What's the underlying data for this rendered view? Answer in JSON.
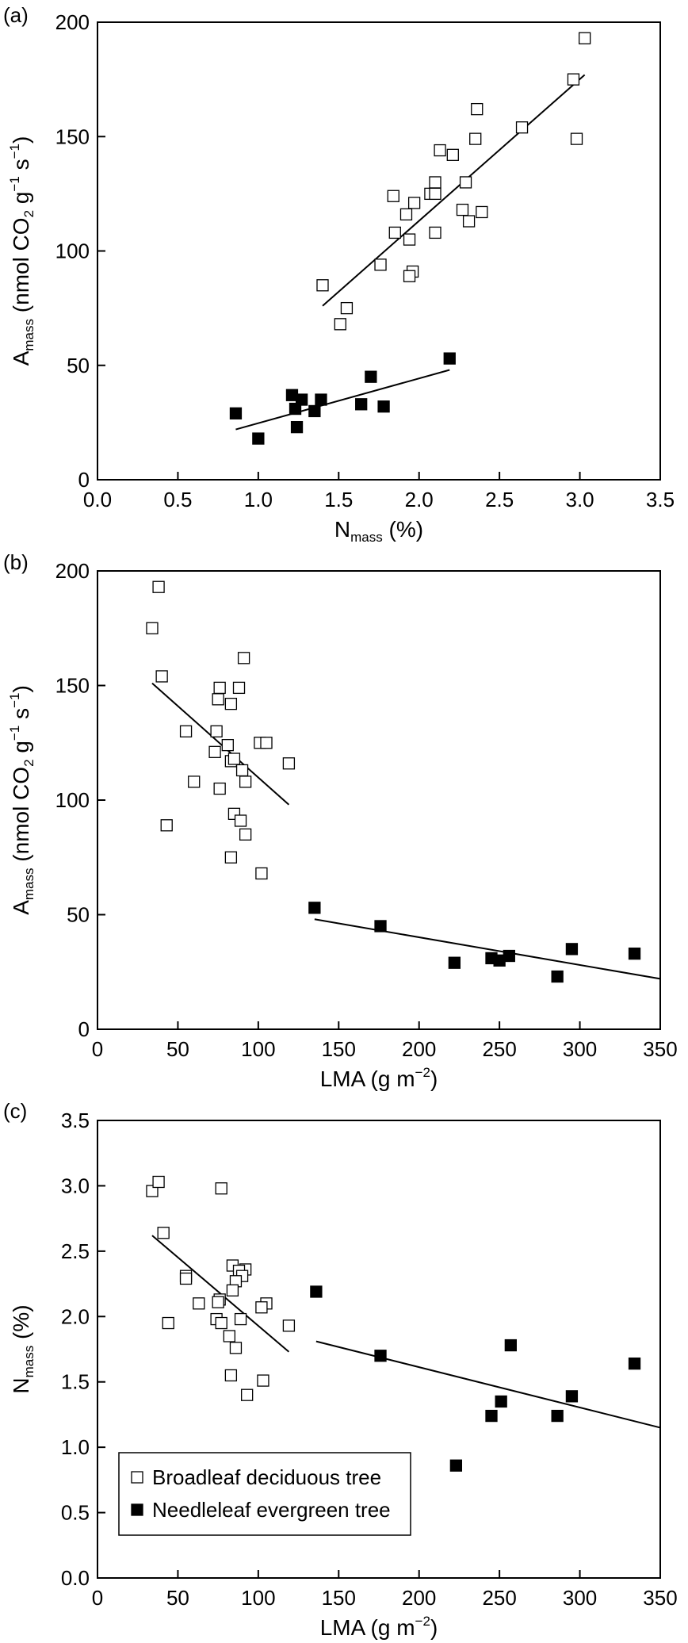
{
  "colors": {
    "broadleaf_fill": "#ffffff",
    "needleleaf_fill": "#000000",
    "stroke": "#000000"
  },
  "legend": {
    "broadleaf": "Broadleaf deciduous tree",
    "needleleaf": "Needleleaf evergreen tree"
  },
  "chart_data": [
    {
      "panel": "(a)",
      "type": "scatter",
      "ylabel": {
        "main": "A",
        "sub": "mass",
        "rest": " (nmol CO",
        "sub2": "2",
        "rest2": " g",
        "sup1": "−1",
        "rest3": " s",
        "sup2": "−1",
        "rest4": ")"
      },
      "xlabel": {
        "main": "N",
        "sub": "mass",
        "rest": " (%)"
      },
      "xlim": [
        0,
        3.5
      ],
      "ylim": [
        0,
        200
      ],
      "xticks": [
        "0.0",
        "0.5",
        "1.0",
        "1.5",
        "2.0",
        "2.5",
        "3.0",
        "3.5"
      ],
      "yticks": [
        "0",
        "50",
        "100",
        "150",
        "200"
      ],
      "series": [
        {
          "legend_key": "broadleaf",
          "points": [
            [
              3.03,
              193
            ],
            [
              2.96,
              175
            ],
            [
              2.98,
              149
            ],
            [
              2.64,
              154
            ],
            [
              2.36,
              162
            ],
            [
              2.35,
              149
            ],
            [
              2.13,
              144
            ],
            [
              2.21,
              142
            ],
            [
              2.29,
              130
            ],
            [
              2.1,
              130
            ],
            [
              2.07,
              125
            ],
            [
              2.1,
              125
            ],
            [
              1.84,
              124
            ],
            [
              1.97,
              121
            ],
            [
              2.27,
              118
            ],
            [
              2.39,
              117
            ],
            [
              1.92,
              116
            ],
            [
              2.31,
              113
            ],
            [
              1.85,
              108
            ],
            [
              2.1,
              108
            ],
            [
              1.94,
              105
            ],
            [
              1.96,
              91
            ],
            [
              1.94,
              89
            ],
            [
              1.76,
              94
            ],
            [
              1.4,
              85
            ],
            [
              1.55,
              75
            ],
            [
              1.51,
              68
            ]
          ],
          "fit": [
            [
              1.4,
              76
            ],
            [
              3.03,
              177
            ]
          ]
        },
        {
          "legend_key": "needleleaf",
          "points": [
            [
              2.19,
              53
            ],
            [
              1.7,
              45
            ],
            [
              1.21,
              37
            ],
            [
              1.27,
              35
            ],
            [
              1.39,
              35
            ],
            [
              1.64,
              33
            ],
            [
              1.23,
              31
            ],
            [
              1.35,
              30
            ],
            [
              1.78,
              32
            ],
            [
              0.86,
              29
            ],
            [
              1.0,
              18
            ],
            [
              1.24,
              23
            ]
          ],
          "fit": [
            [
              0.86,
              22
            ],
            [
              2.19,
              48
            ]
          ]
        }
      ]
    },
    {
      "panel": "(b)",
      "type": "scatter",
      "ylabel": {
        "main": "A",
        "sub": "mass",
        "rest": " (nmol CO",
        "sub2": "2",
        "rest2": " g",
        "sup1": "−1",
        "rest3": " s",
        "sup2": "−1",
        "rest4": ")"
      },
      "xlabel": {
        "main": "LMA (g m",
        "sup": "−2",
        "rest": ")"
      },
      "xlim": [
        0,
        350
      ],
      "ylim": [
        0,
        200
      ],
      "xticks": [
        "0",
        "50",
        "100",
        "150",
        "200",
        "250",
        "300",
        "350"
      ],
      "yticks": [
        "0",
        "50",
        "100",
        "150",
        "200"
      ],
      "series": [
        {
          "legend_key": "broadleaf",
          "points": [
            [
              38,
              193
            ],
            [
              34,
              175
            ],
            [
              40,
              154
            ],
            [
              91,
              162
            ],
            [
              76,
              149
            ],
            [
              88,
              149
            ],
            [
              75,
              144
            ],
            [
              83,
              142
            ],
            [
              55,
              130
            ],
            [
              74,
              130
            ],
            [
              101,
              125
            ],
            [
              105,
              125
            ],
            [
              81,
              124
            ],
            [
              73,
              121
            ],
            [
              83,
              117
            ],
            [
              85,
              118
            ],
            [
              119,
              116
            ],
            [
              90,
              113
            ],
            [
              92,
              108
            ],
            [
              60,
              108
            ],
            [
              76,
              105
            ],
            [
              85,
              94
            ],
            [
              89,
              91
            ],
            [
              43,
              89
            ],
            [
              92,
              85
            ],
            [
              83,
              75
            ],
            [
              102,
              68
            ]
          ],
          "fit": [
            [
              34,
              151
            ],
            [
              119,
              98
            ]
          ]
        },
        {
          "legend_key": "needleleaf",
          "points": [
            [
              135,
              53
            ],
            [
              176,
              45
            ],
            [
              222,
              29
            ],
            [
              245,
              31
            ],
            [
              250,
              30
            ],
            [
              256,
              32
            ],
            [
              286,
              23
            ],
            [
              295,
              35
            ],
            [
              334,
              33
            ]
          ],
          "fit": [
            [
              135,
              48
            ],
            [
              350,
              22
            ]
          ]
        }
      ]
    },
    {
      "panel": "(c)",
      "type": "scatter",
      "ylabel": {
        "main": "N",
        "sub": "mass",
        "rest": " (%)"
      },
      "xlabel": {
        "main": "LMA (g m",
        "sup": "−2",
        "rest": ")"
      },
      "xlim": [
        0,
        350
      ],
      "ylim": [
        0,
        3.5
      ],
      "xticks": [
        "0",
        "50",
        "100",
        "150",
        "200",
        "250",
        "300",
        "350"
      ],
      "yticks": [
        "0.0",
        "0.5",
        "1.0",
        "1.5",
        "2.0",
        "2.5",
        "3.0",
        "3.5"
      ],
      "series": [
        {
          "legend_key": "broadleaf",
          "points": [
            [
              34,
              2.96
            ],
            [
              38,
              3.03
            ],
            [
              77,
              2.98
            ],
            [
              41,
              2.64
            ],
            [
              55,
              2.31
            ],
            [
              55,
              2.29
            ],
            [
              84,
              2.39
            ],
            [
              92,
              2.36
            ],
            [
              88,
              2.35
            ],
            [
              90,
              2.31
            ],
            [
              86,
              2.27
            ],
            [
              76,
              2.13
            ],
            [
              75,
              2.11
            ],
            [
              84,
              2.2
            ],
            [
              63,
              2.1
            ],
            [
              105,
              2.1
            ],
            [
              102,
              2.07
            ],
            [
              74,
              1.98
            ],
            [
              89,
              1.98
            ],
            [
              77,
              1.95
            ],
            [
              44,
              1.95
            ],
            [
              119,
              1.93
            ],
            [
              82,
              1.85
            ],
            [
              86,
              1.76
            ],
            [
              83,
              1.55
            ],
            [
              103,
              1.51
            ],
            [
              93,
              1.4
            ]
          ],
          "fit": [
            [
              34,
              2.62
            ],
            [
              119,
              1.73
            ]
          ]
        },
        {
          "legend_key": "needleleaf",
          "points": [
            [
              136,
              2.19
            ],
            [
              176,
              1.7
            ],
            [
              257,
              1.78
            ],
            [
              334,
              1.64
            ],
            [
              295,
              1.39
            ],
            [
              251,
              1.35
            ],
            [
              245,
              1.24
            ],
            [
              286,
              1.24
            ],
            [
              223,
              0.86
            ]
          ],
          "fit": [
            [
              136,
              1.81
            ],
            [
              350,
              1.15
            ]
          ]
        }
      ]
    }
  ]
}
